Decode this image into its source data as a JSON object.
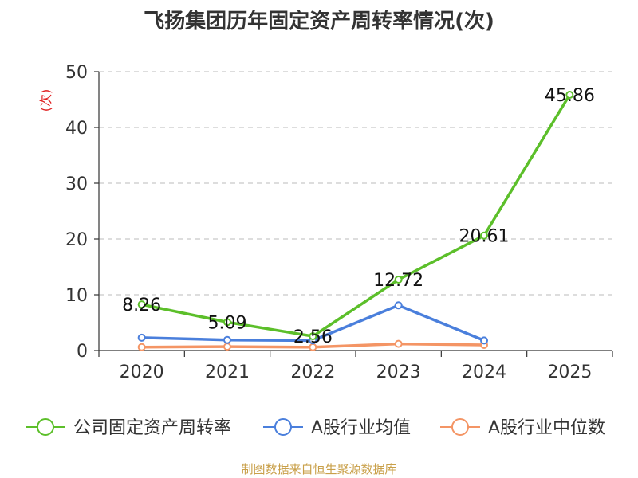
{
  "chart_data": {
    "type": "line",
    "title": "飞扬集团历年固定资产周转率情况(次)",
    "ylabel": "(次)",
    "xlabel": "",
    "categories": [
      "2020",
      "2021",
      "2022",
      "2023",
      "2024",
      "2025"
    ],
    "ylim": [
      0,
      50
    ],
    "yticks": [
      0,
      10,
      20,
      30,
      40,
      50
    ],
    "grid": true,
    "legend_position": "bottom",
    "series": [
      {
        "name": "公司固定资产周转率",
        "color": "#5cbf2a",
        "values": [
          8.26,
          5.09,
          2.56,
          12.72,
          20.61,
          45.86
        ],
        "labels": [
          "8.26",
          "5.09",
          "2.56",
          "12.72",
          "20.61",
          "45.86"
        ]
      },
      {
        "name": "A股行业均值",
        "color": "#4a7fdc",
        "values": [
          2.3,
          1.9,
          1.8,
          8.1,
          1.8,
          null
        ]
      },
      {
        "name": "A股行业中位数",
        "color": "#f49565",
        "values": [
          0.6,
          0.7,
          0.6,
          1.2,
          1.0,
          null
        ]
      }
    ]
  },
  "source": "制图数据来自恒生聚源数据库"
}
